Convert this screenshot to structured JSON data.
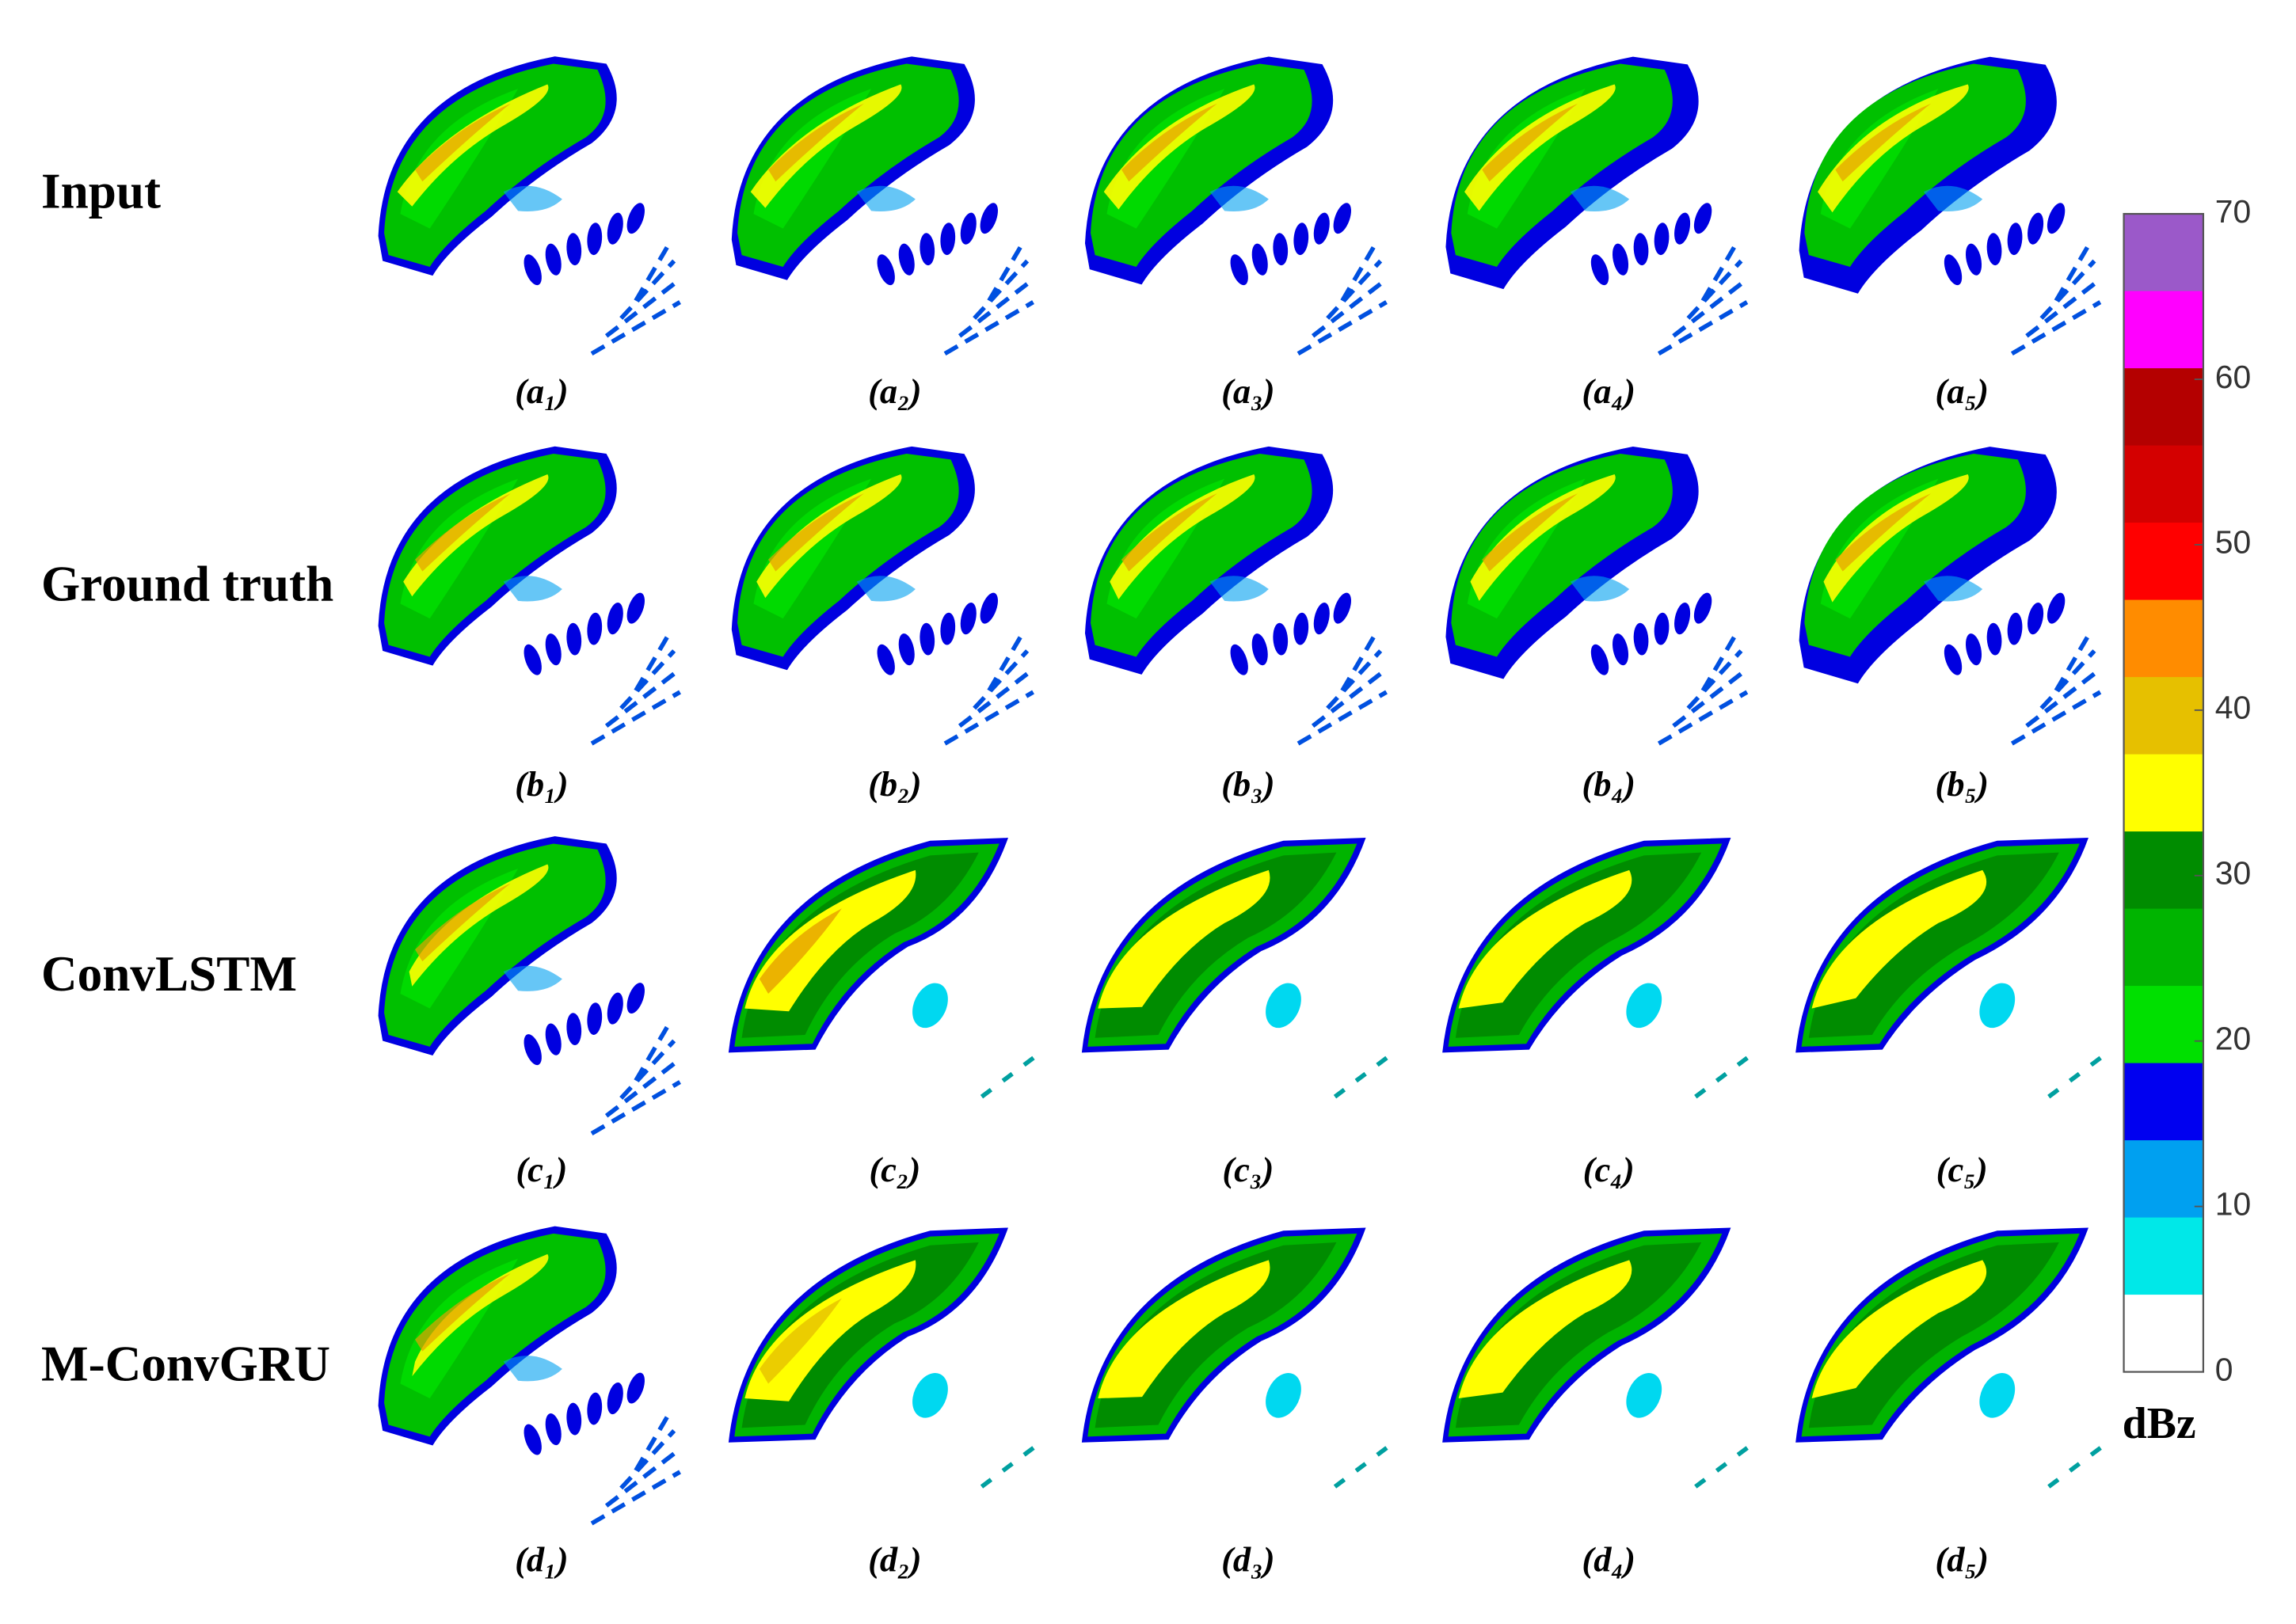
{
  "rows": [
    {
      "label": "Input",
      "panels": [
        "(a₁)",
        "(a₂)",
        "(a₃)",
        "(a₄)",
        "(a₅)"
      ]
    },
    {
      "label": "Ground truth",
      "panels": [
        "(b₁)",
        "(b₂)",
        "(b₃)",
        "(b₄)",
        "(b₅)"
      ]
    },
    {
      "label": "ConvLSTM",
      "panels": [
        "(c₁)",
        "(c₂)",
        "(c₃)",
        "(c₄)",
        "(c₅)"
      ]
    },
    {
      "label": "M-ConvGRU",
      "panels": [
        "(d₁)",
        "(d₂)",
        "(d₃)",
        "(d₄)",
        "(d₅)"
      ]
    }
  ],
  "colorbar": {
    "ticks": [
      0,
      10,
      20,
      30,
      40,
      50,
      60,
      70
    ],
    "unit": "dBz",
    "colors": [
      "#9b59c9",
      "#ff00ff",
      "#b40000",
      "#d40000",
      "#ff0000",
      "#ff8c00",
      "#e6c000",
      "#ffff00",
      "#008c00",
      "#00b400",
      "#00e000",
      "#0000f0",
      "#00a0f0",
      "#00e8e8",
      "#ffffff"
    ]
  }
}
